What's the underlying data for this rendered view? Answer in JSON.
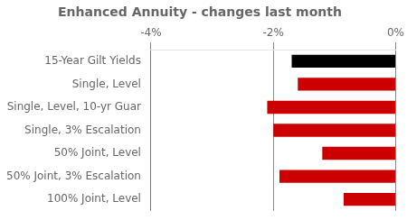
{
  "chart_data": {
    "type": "bar",
    "orientation": "horizontal",
    "title": "Enhanced Annuity - changes last month",
    "categories": [
      "15-Year Gilt Yields",
      "Single, Level",
      "Single, Level, 10-yr Guar",
      "Single, 3% Escalation",
      "50% Joint, Level",
      "50% Joint, 3% Escalation",
      "100% Joint, Level"
    ],
    "values": [
      -1.7,
      -1.6,
      -2.1,
      -2.0,
      -1.2,
      -1.9,
      -0.85
    ],
    "colors": [
      "#000000",
      "#cc0000",
      "#cc0000",
      "#cc0000",
      "#cc0000",
      "#cc0000",
      "#cc0000"
    ],
    "xlim": [
      -4,
      0
    ],
    "xticks": [
      {
        "value": -4,
        "label": "-4%"
      },
      {
        "value": -2,
        "label": "-2%"
      },
      {
        "value": 0,
        "label": "0%"
      }
    ],
    "grid": true
  }
}
